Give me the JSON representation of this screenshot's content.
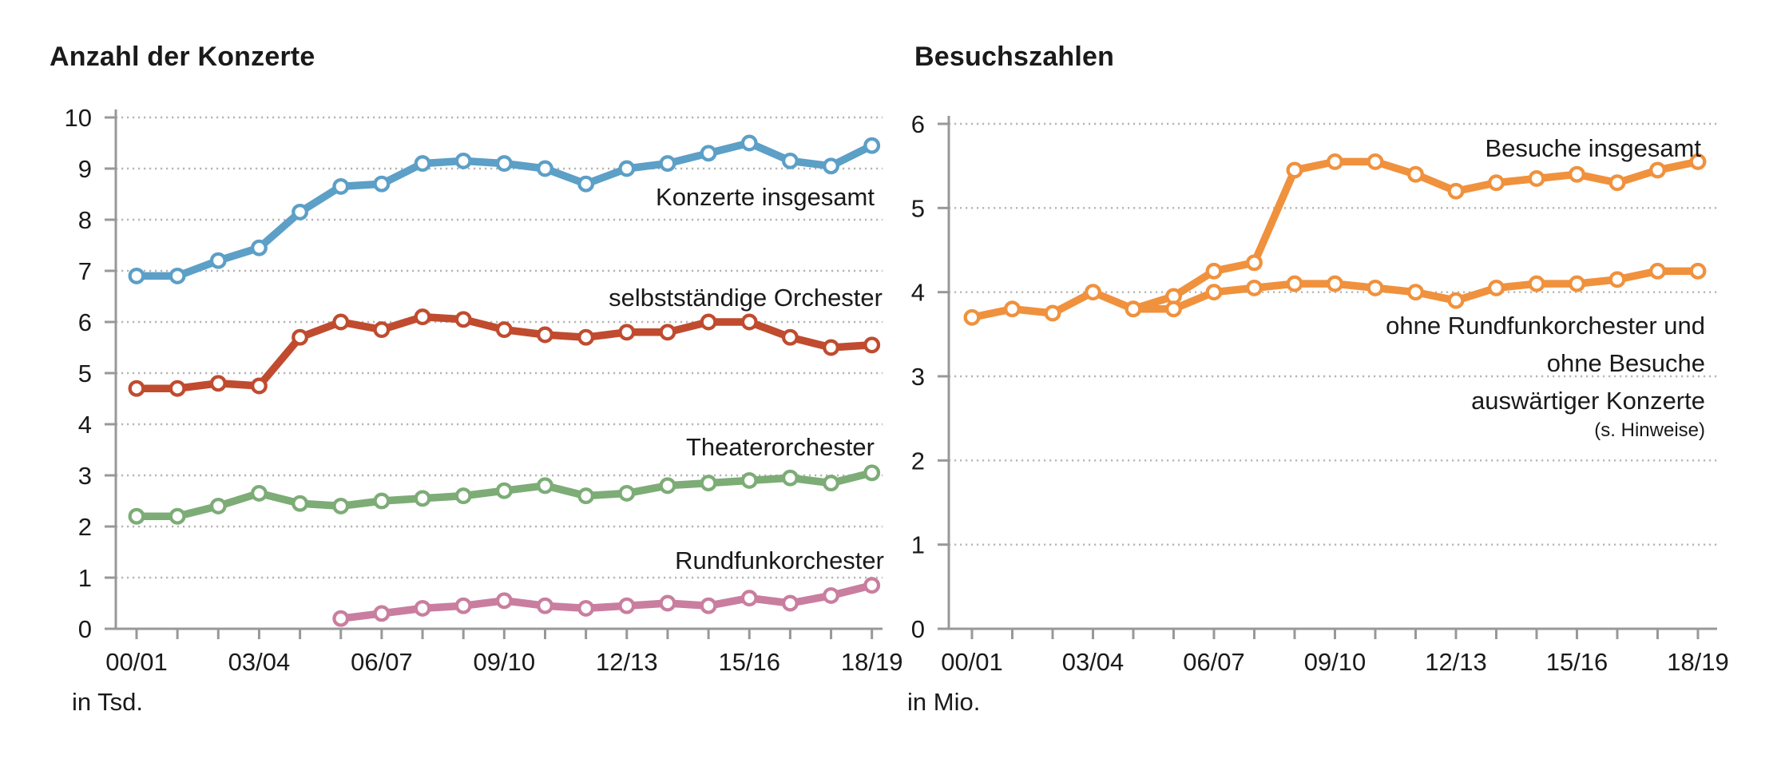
{
  "chart_data": [
    {
      "type": "line",
      "title": "Anzahl der Konzerte",
      "unit_label": "in Tsd.",
      "ylim": [
        0,
        10
      ],
      "y_tick_step": 1,
      "grid": "dotted horizontal gridlines",
      "legend_position": "inline labels right of lines",
      "x": [
        "00/01",
        "01/02",
        "02/03",
        "03/04",
        "04/05",
        "05/06",
        "06/07",
        "07/08",
        "08/09",
        "09/10",
        "10/11",
        "11/12",
        "12/13",
        "13/14",
        "14/15",
        "15/16",
        "16/17",
        "17/18",
        "18/19"
      ],
      "x_major_tick_labels": [
        "00/01",
        "03/04",
        "06/07",
        "09/10",
        "12/13",
        "15/16",
        "18/19"
      ],
      "series": [
        {
          "name": "Konzerte insgesamt",
          "color": "#5C9FC7",
          "start_index": 0,
          "values": [
            6.9,
            6.9,
            7.2,
            7.45,
            8.15,
            8.65,
            8.7,
            9.1,
            9.15,
            9.1,
            9.0,
            8.7,
            9.0,
            9.1,
            9.3,
            9.5,
            9.15,
            9.05,
            9.45
          ]
        },
        {
          "name": "selbstständige Orchester",
          "color": "#C04B2F",
          "start_index": 0,
          "values": [
            4.7,
            4.7,
            4.8,
            4.75,
            5.7,
            6.0,
            5.85,
            6.1,
            6.05,
            5.85,
            5.75,
            5.7,
            5.8,
            5.8,
            6.0,
            6.0,
            5.7,
            5.5,
            5.55
          ]
        },
        {
          "name": "Theaterorchester",
          "color": "#7DAC77",
          "start_index": 0,
          "values": [
            2.2,
            2.2,
            2.4,
            2.65,
            2.45,
            2.4,
            2.5,
            2.55,
            2.6,
            2.7,
            2.8,
            2.6,
            2.65,
            2.8,
            2.85,
            2.9,
            2.95,
            2.85,
            3.05
          ]
        },
        {
          "name": "Rundfunkorchester",
          "color": "#C97E9F",
          "start_index": 5,
          "values": [
            0.2,
            0.3,
            0.4,
            0.45,
            0.55,
            0.45,
            0.4,
            0.45,
            0.5,
            0.45,
            0.6,
            0.5,
            0.65,
            0.85
          ]
        }
      ]
    },
    {
      "type": "line",
      "title": "Besuchszahlen",
      "unit_label": "in Mio.",
      "ylim": [
        0,
        6
      ],
      "y_tick_step": 1,
      "grid": "dotted horizontal gridlines",
      "legend_position": "inline labels",
      "x": [
        "00/01",
        "01/02",
        "02/03",
        "03/04",
        "04/05",
        "05/06",
        "06/07",
        "07/08",
        "08/09",
        "09/10",
        "10/11",
        "11/12",
        "12/13",
        "13/14",
        "14/15",
        "15/16",
        "16/17",
        "17/18",
        "18/19"
      ],
      "x_major_tick_labels": [
        "00/01",
        "03/04",
        "06/07",
        "09/10",
        "12/13",
        "15/16",
        "18/19"
      ],
      "series": [
        {
          "name": "Besuche insgesamt",
          "color": "#F0913D",
          "start_index": 0,
          "values": [
            3.7,
            3.8,
            3.75,
            4.0,
            3.8,
            3.95,
            4.25,
            4.35,
            5.45,
            5.55,
            5.55,
            5.4,
            5.2,
            5.3,
            5.35,
            5.4,
            5.3,
            5.45,
            5.55
          ]
        },
        {
          "name": "ohne Rundfunkorchester und ohne Besuche auswärtiger Konzerte",
          "label_lines": [
            "ohne Rundfunkorchester und",
            "ohne Besuche",
            "auswärtiger Konzerte"
          ],
          "note": "(s. Hinweise)",
          "color": "#F0913D",
          "start_index": 4,
          "values": [
            3.8,
            3.8,
            4.0,
            4.05,
            4.1,
            4.1,
            4.05,
            4.0,
            3.9,
            4.05,
            4.1,
            4.1,
            4.15,
            4.25,
            4.25
          ]
        }
      ]
    }
  ],
  "colors": {
    "konzerte_insgesamt": "#5C9FC7",
    "selbststaendige_orchester": "#C04B2F",
    "theaterorchester": "#7DAC77",
    "rundfunkorchester": "#C97E9F",
    "besuche": "#F0913D",
    "grid": "#b5b5b5",
    "axis": "#989898",
    "text": "#1a1a1a"
  }
}
